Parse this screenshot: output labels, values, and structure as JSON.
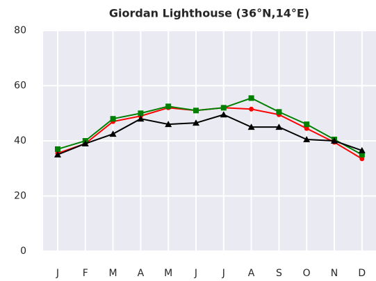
{
  "chart_data": {
    "type": "line",
    "title": "Giordan Lighthouse (36°N,14°E)",
    "categories": [
      "J",
      "F",
      "M",
      "A",
      "M",
      "J",
      "J",
      "A",
      "S",
      "O",
      "N",
      "D"
    ],
    "series": [
      {
        "color": "#ff0000",
        "marker": "circle",
        "values": [
          35.5,
          39,
          47,
          49,
          52,
          51,
          52,
          51.5,
          49.5,
          44.5,
          39.5,
          33.5
        ]
      },
      {
        "color": "#008000",
        "marker": "square",
        "values": [
          37,
          40,
          48,
          50,
          52.5,
          51,
          52,
          55.5,
          50.5,
          46,
          40.5,
          35
        ]
      },
      {
        "color": "#000000",
        "marker": "triangle",
        "values": [
          35,
          39,
          42.5,
          48,
          46,
          46.5,
          49.5,
          45,
          45,
          40.5,
          40,
          36.5
        ]
      }
    ],
    "ylim": [
      0,
      80
    ],
    "yticks": [
      0,
      20,
      40,
      60,
      80
    ],
    "grid": true
  }
}
